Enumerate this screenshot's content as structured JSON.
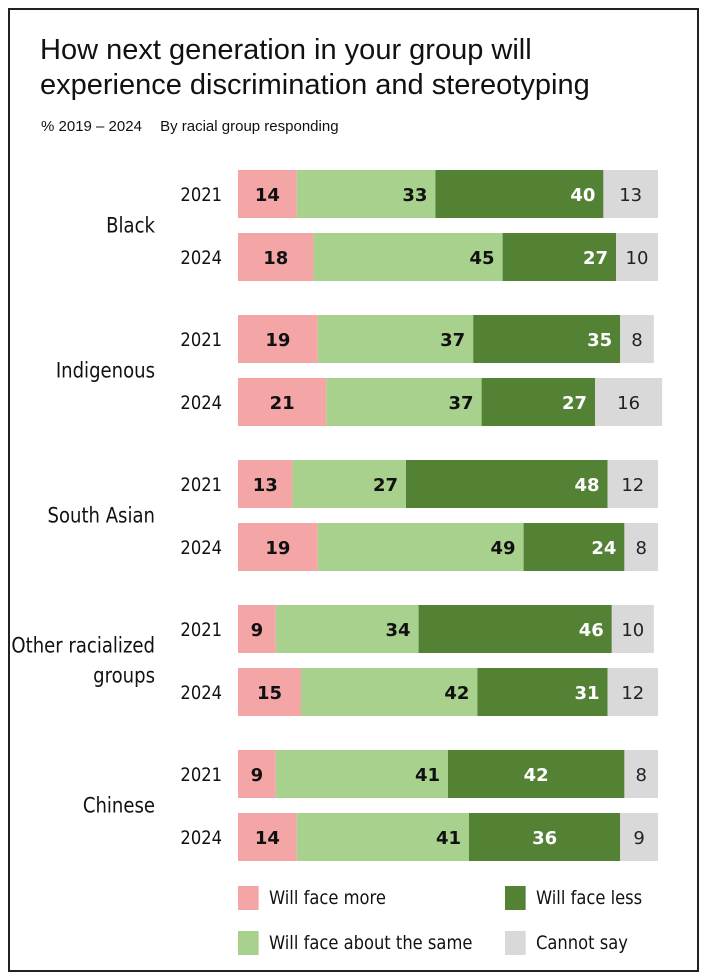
{
  "title": "How next generation in your group will experience discrimination and stereotyping",
  "subtitle_left": "% 2019 – 2024",
  "subtitle_right": "By racial group responding",
  "colors": {
    "more": "#f4a5a5",
    "same": "#a9d18e",
    "less": "#548235",
    "cannot": "#d9d9d9"
  },
  "legend": [
    {
      "key": "more",
      "label": "Will face more"
    },
    {
      "key": "less",
      "label": "Will face less"
    },
    {
      "key": "same",
      "label": "Will face about the same"
    },
    {
      "key": "cannot",
      "label": "Cannot say"
    }
  ],
  "chart_data": {
    "type": "bar",
    "orientation": "horizontal",
    "stacked": true,
    "series": [
      {
        "key": "more",
        "name": "Will face more"
      },
      {
        "key": "same",
        "name": "Will face about the same"
      },
      {
        "key": "less",
        "name": "Will face less"
      },
      {
        "key": "cannot",
        "name": "Cannot say"
      }
    ],
    "groups": [
      {
        "label": [
          "Black"
        ],
        "rows": [
          {
            "year": "2021",
            "values": [
              14,
              33,
              40,
              13
            ]
          },
          {
            "year": "2024",
            "values": [
              18,
              45,
              27,
              10
            ]
          }
        ]
      },
      {
        "label": [
          "Indigenous"
        ],
        "rows": [
          {
            "year": "2021",
            "values": [
              19,
              37,
              35,
              8
            ]
          },
          {
            "year": "2024",
            "values": [
              21,
              37,
              27,
              16
            ]
          }
        ]
      },
      {
        "label": [
          "South Asian"
        ],
        "rows": [
          {
            "year": "2021",
            "values": [
              13,
              27,
              48,
              12
            ]
          },
          {
            "year": "2024",
            "values": [
              19,
              49,
              24,
              8
            ]
          }
        ]
      },
      {
        "label": [
          "Other racialized",
          "groups"
        ],
        "rows": [
          {
            "year": "2021",
            "values": [
              9,
              34,
              46,
              10
            ]
          },
          {
            "year": "2024",
            "values": [
              15,
              42,
              31,
              12
            ]
          }
        ]
      },
      {
        "label": [
          "Chinese"
        ],
        "rows": [
          {
            "year": "2021",
            "values": [
              9,
              41,
              42,
              8
            ]
          },
          {
            "year": "2024",
            "values": [
              14,
              41,
              36,
              9
            ]
          }
        ]
      }
    ]
  }
}
